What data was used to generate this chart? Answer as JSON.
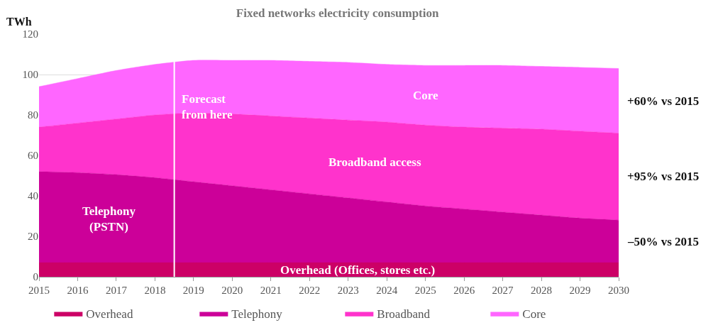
{
  "chart_data": {
    "type": "area",
    "stacked": true,
    "title": "Fixed networks electricity consumption",
    "ylabel": "TWh",
    "x": [
      2015,
      2016,
      2017,
      2018,
      2019,
      2020,
      2021,
      2022,
      2023,
      2024,
      2025,
      2026,
      2027,
      2028,
      2029,
      2030
    ],
    "series": [
      {
        "name": "Overhead",
        "color": "#cc0066",
        "values": [
          7,
          7,
          7,
          7,
          7,
          7,
          7,
          7,
          7,
          7,
          7,
          7,
          7,
          7,
          7,
          7
        ]
      },
      {
        "name": "Telephony",
        "color": "#cc0099",
        "values": [
          45,
          44.5,
          43.5,
          42,
          40,
          38,
          36,
          34,
          32,
          30,
          28,
          26.5,
          25,
          23.5,
          22,
          21
        ]
      },
      {
        "name": "Broadband",
        "color": "#ff33cc",
        "values": [
          22,
          24.5,
          27.5,
          31,
          34,
          35.5,
          36.5,
          37.5,
          38.5,
          39.5,
          40,
          40.5,
          41.5,
          42.5,
          43,
          43
        ]
      },
      {
        "name": "Core",
        "color": "#ff66ff",
        "values": [
          20,
          22,
          24,
          25,
          26,
          26.5,
          27.5,
          28,
          28.5,
          28.5,
          29.5,
          30.5,
          31,
          31,
          31.5,
          32
        ]
      }
    ],
    "xlim": [
      2015,
      2030
    ],
    "xticks": [
      2015,
      2016,
      2017,
      2018,
      2019,
      2020,
      2021,
      2022,
      2023,
      2024,
      2025,
      2026,
      2027,
      2028,
      2029,
      2030
    ],
    "ylim": [
      0,
      120
    ],
    "yticks": [
      0,
      20,
      40,
      60,
      80,
      100,
      120
    ],
    "grid": "y",
    "legend": "bottom",
    "ref_lines": [
      {
        "axis": "x",
        "value": 2018.5,
        "label": "Forecast\nfrom here",
        "color": "#ffffff"
      }
    ],
    "annotations": [
      "Core",
      "Broadband access",
      "Telephony\n(PSTN)",
      "Overhead (Offices, stores etc.)",
      "+60% vs 2015",
      "+95% vs 2015",
      "–50% vs 2015"
    ]
  }
}
